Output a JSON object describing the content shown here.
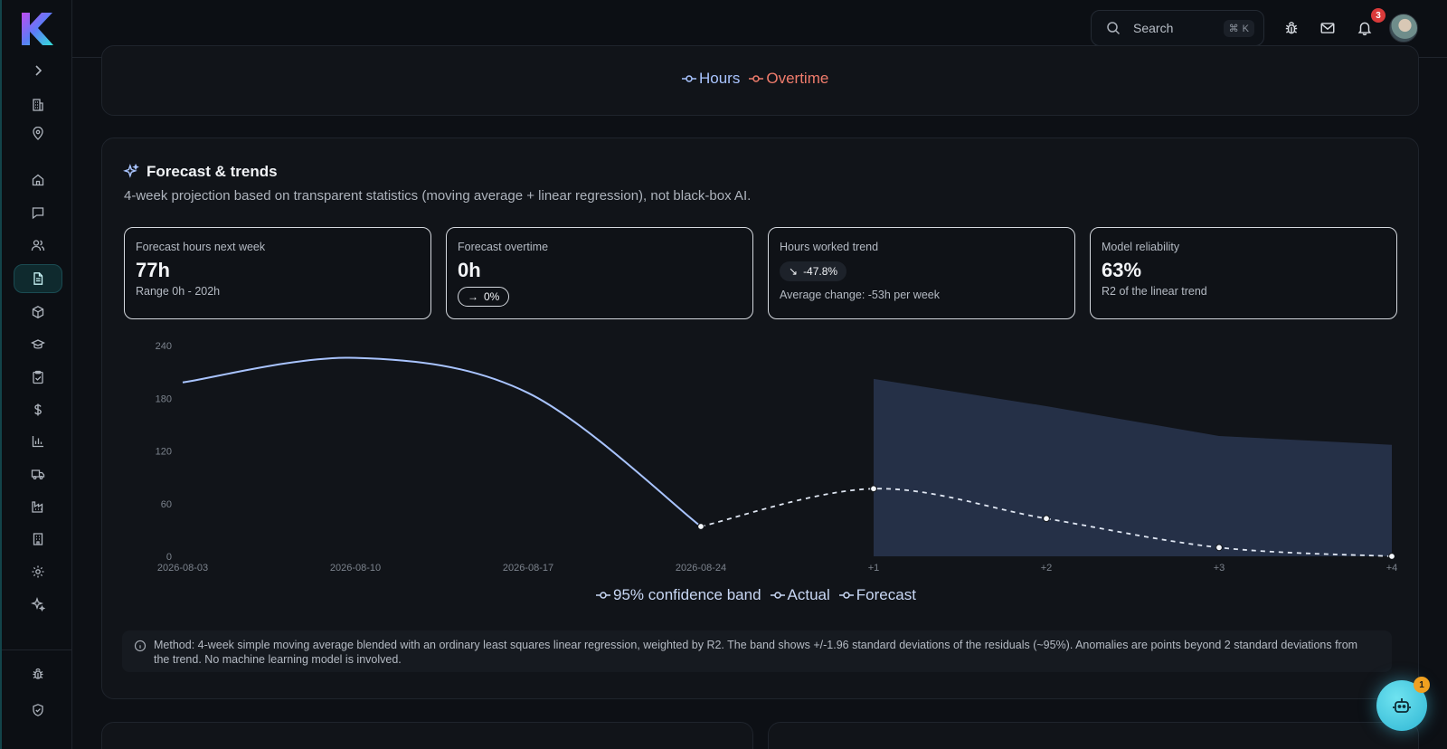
{
  "header": {
    "search_placeholder": "Search",
    "search_shortcut_symbol": "⌘",
    "search_shortcut_key": "K",
    "notification_count": "3"
  },
  "top_chart_legend": [
    {
      "label": "Hours",
      "color": "#a9c4ff"
    },
    {
      "label": "Overtime",
      "color": "#f07c6c"
    }
  ],
  "forecast": {
    "title": "Forecast & trends",
    "subtitle": "4-week projection based on transparent statistics (moving average + linear regression), not black-box AI.",
    "stats": [
      {
        "label": "Forecast hours next week",
        "value": "77h",
        "sub": "Range 0h - 202h"
      },
      {
        "label": "Forecast overtime",
        "value": "0h",
        "pill_arrow": "→",
        "pill": "0%"
      },
      {
        "label": "Hours worked trend",
        "pill_arrow": "↘",
        "pill": "-47.8%",
        "sub": "Average change: -53h per week"
      },
      {
        "label": "Model reliability",
        "value": "63%",
        "sub": "R2 of the linear trend"
      }
    ],
    "method_note": "Method: 4-week simple moving average blended with an ordinary least squares linear regression, weighted by R2. The band shows +/-1.96 standard deviations of the residuals (~95%). Anomalies are points beyond 2 standard deviations from the trend. No machine learning model is involved."
  },
  "chart_data": {
    "type": "line",
    "x": [
      "2026-08-03",
      "2026-08-10",
      "2026-08-17",
      "2026-08-24",
      "+1",
      "+2",
      "+3",
      "+4"
    ],
    "ylim": [
      0,
      240
    ],
    "yticks": [
      0,
      60,
      120,
      180,
      240
    ],
    "series": [
      {
        "name": "Actual",
        "values": [
          198,
          226,
          186,
          34,
          null,
          null,
          null,
          null
        ],
        "color": "#a9c4ff"
      },
      {
        "name": "Forecast",
        "values": [
          null,
          null,
          null,
          34,
          77,
          43,
          10,
          0
        ],
        "color": "#dfe6f2",
        "dashed": true
      },
      {
        "name": "95% confidence band",
        "lower": [
          null,
          null,
          null,
          null,
          0,
          0,
          0,
          0
        ],
        "upper": [
          null,
          null,
          null,
          null,
          202,
          171,
          137,
          127
        ],
        "color": "#27314a"
      }
    ],
    "legend": [
      "95% confidence band",
      "Actual",
      "Forecast"
    ],
    "legend_position": "bottom",
    "grid": false
  },
  "assistant": {
    "badge_count": "1"
  }
}
